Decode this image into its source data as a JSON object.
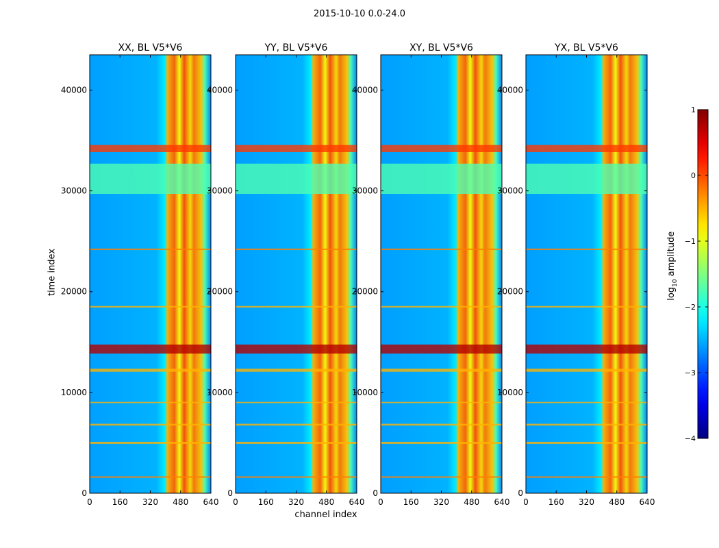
{
  "figure_title": "2015-10-10 0.0-24.0",
  "xlabel": "channel index",
  "ylabel": "time index",
  "colorbar": {
    "label": "log10 amplitude",
    "label_prefix": "log",
    "label_sub": "10",
    "label_suffix": " amplitude",
    "ticks": [
      1,
      0,
      -1,
      -2,
      -3,
      -4
    ],
    "tick_labels": [
      "1",
      "0",
      "−1",
      "−2",
      "−3",
      "−4"
    ],
    "range": [
      -4,
      1
    ],
    "colormap": "jet"
  },
  "chart_data": [
    {
      "type": "heatmap",
      "title": "XX, BL V5*V6",
      "xlabel": "channel index",
      "ylabel": "time index",
      "xlim": [
        0,
        640
      ],
      "ylim": [
        0,
        43500
      ],
      "xticks": [
        0,
        160,
        320,
        480,
        640
      ],
      "xtick_labels": [
        "0",
        "160",
        "320",
        "480",
        "640"
      ],
      "yticks": [
        0,
        10000,
        20000,
        30000,
        40000
      ],
      "ytick_labels": [
        "0",
        "10000",
        "20000",
        "30000",
        "40000"
      ]
    },
    {
      "type": "heatmap",
      "title": "YY, BL V5*V6",
      "xlabel": "channel index",
      "ylabel": "time index",
      "xlim": [
        0,
        640
      ],
      "ylim": [
        0,
        43500
      ],
      "xticks": [
        0,
        160,
        320,
        480,
        640
      ],
      "xtick_labels": [
        "0",
        "160",
        "320",
        "480",
        "640"
      ],
      "yticks": [
        0,
        10000,
        20000,
        30000,
        40000
      ],
      "ytick_labels": [
        "0",
        "10000",
        "20000",
        "30000",
        "40000"
      ]
    },
    {
      "type": "heatmap",
      "title": "XY, BL V5*V6",
      "xlabel": "channel index",
      "ylabel": "time index",
      "xlim": [
        0,
        640
      ],
      "ylim": [
        0,
        43500
      ],
      "xticks": [
        0,
        160,
        320,
        480,
        640
      ],
      "xtick_labels": [
        "0",
        "160",
        "320",
        "480",
        "640"
      ],
      "yticks": [
        0,
        10000,
        20000,
        30000,
        40000
      ],
      "ytick_labels": [
        "0",
        "10000",
        "20000",
        "30000",
        "40000"
      ]
    },
    {
      "type": "heatmap",
      "title": "YX, BL V5*V6",
      "xlabel": "channel index",
      "ylabel": "time index",
      "xlim": [
        0,
        640
      ],
      "ylim": [
        0,
        43500
      ],
      "xticks": [
        0,
        160,
        320,
        480,
        640
      ],
      "xtick_labels": [
        "0",
        "160",
        "320",
        "480",
        "640"
      ],
      "yticks": [
        0,
        10000,
        20000,
        30000,
        40000
      ],
      "ytick_labels": [
        "0",
        "10000",
        "20000",
        "30000",
        "40000"
      ]
    }
  ]
}
